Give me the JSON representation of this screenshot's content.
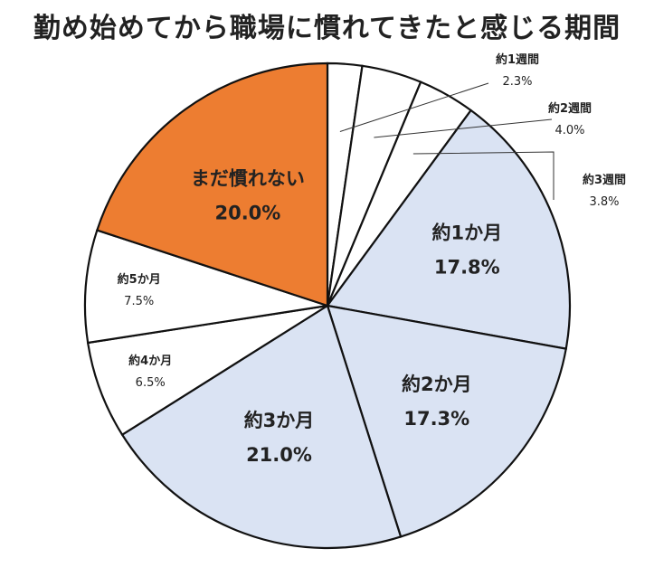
{
  "chart_data": {
    "type": "pie",
    "title": "勤め始めてから職場に慣れてきたと感じる期間",
    "slices": [
      {
        "label": "約1週間",
        "value": 2.3,
        "display": "2.3%",
        "color": "#ffffff"
      },
      {
        "label": "約2週間",
        "value": 4.0,
        "display": "4.0%",
        "color": "#ffffff"
      },
      {
        "label": "約3週間",
        "value": 3.8,
        "display": "3.8%",
        "color": "#ffffff"
      },
      {
        "label": "約1か月",
        "value": 17.8,
        "display": "17.8%",
        "color": "#dae3f3"
      },
      {
        "label": "約2か月",
        "value": 17.3,
        "display": "17.3%",
        "color": "#dae3f3"
      },
      {
        "label": "約3か月",
        "value": 21.0,
        "display": "21.0%",
        "color": "#dae3f3"
      },
      {
        "label": "約4か月",
        "value": 6.5,
        "display": "6.5%",
        "color": "#ffffff"
      },
      {
        "label": "約5か月",
        "value": 7.5,
        "display": "7.5%",
        "color": "#ffffff"
      },
      {
        "label": "まだ慣れない",
        "value": 20.0,
        "display": "20.0%",
        "color": "#ed7d31"
      }
    ]
  }
}
